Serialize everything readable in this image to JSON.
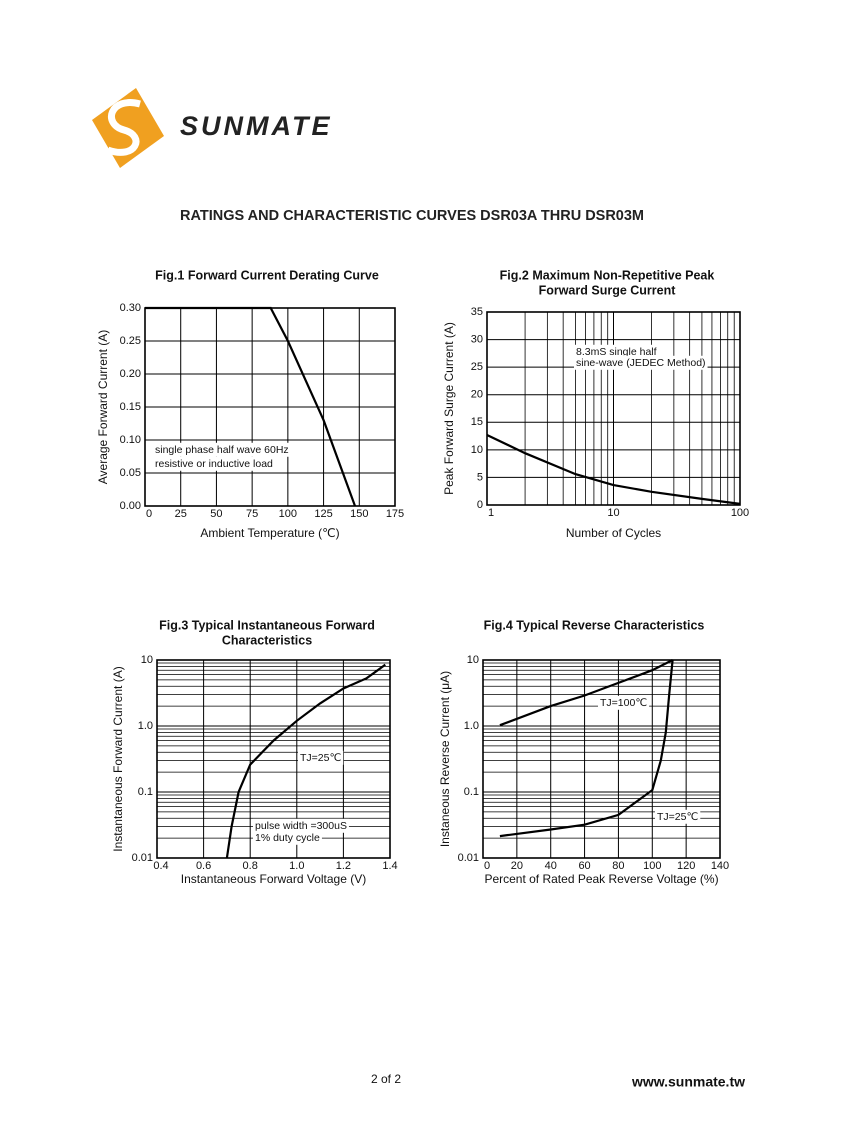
{
  "logo": "SUNMATE",
  "title": "RATINGS AND CHARACTERISTIC CURVES DSR03A THRU DSR03M",
  "page": "2 of 2",
  "website": "www.sunmate.tw",
  "chart_data": [
    {
      "type": "line",
      "title": [
        "Fig.1 Forward Current Derating Curve"
      ],
      "x_label": "Ambient Temperature (℃)",
      "y_label": "Average Forward Current (A)",
      "x": [
        0,
        88,
        100,
        125,
        147
      ],
      "values": [
        0.3,
        0.3,
        0.25,
        0.13,
        0.0
      ],
      "color": "#000000",
      "xlim": [
        0,
        175
      ],
      "xticks": [
        0,
        25,
        50,
        75,
        100,
        125,
        150,
        175
      ],
      "ylim": [
        0,
        0.3
      ],
      "yticks": [
        {
          "value": 0,
          "label": "0.00"
        },
        {
          "value": 0.05,
          "label": "0.05"
        },
        {
          "value": 0.1,
          "label": "0.10"
        },
        {
          "value": 0.15,
          "label": "0.15"
        },
        {
          "value": 0.2,
          "label": "0.20"
        },
        {
          "value": 0.25,
          "label": "0.25"
        },
        {
          "value": 0.3,
          "label": "0.30"
        }
      ],
      "grid": true,
      "annotations": [
        "single phase half wave 60Hz",
        "resistive or inductive load"
      ]
    },
    {
      "type": "line",
      "title": [
        "Fig.2 Maximum Non-Repetitive Peak",
        "Forward Surge Current"
      ],
      "x_label": "Number of Cycles",
      "y_label": "Peak Forward Surge Current (A)",
      "x": [
        1,
        2,
        5,
        10,
        20,
        50,
        100
      ],
      "values": [
        12.7,
        9.4,
        5.6,
        3.6,
        2.4,
        1.1,
        0.2
      ],
      "color": "#000000",
      "x_log": true,
      "xlim": [
        1,
        100
      ],
      "xticks": [
        1,
        10,
        100
      ],
      "ylim": [
        0,
        35
      ],
      "yticks": [
        0,
        5,
        10,
        15,
        20,
        25,
        30,
        35
      ],
      "grid": true,
      "annotations": [
        "8.3mS single half",
        "sine-wave (JEDEC Method)"
      ]
    },
    {
      "type": "line",
      "title": [
        "Fig.3 Typical Instantaneous Forward",
        "Characteristics"
      ],
      "x_label": "Instantaneous Forward Voltage (V)",
      "y_label": "Instantaneous Forward Current (A)",
      "series": [
        {
          "name": "TJ=25℃",
          "color": "#000000",
          "x": [
            0.7,
            0.72,
            0.75,
            0.8,
            0.9,
            1.0,
            1.1,
            1.2,
            1.3,
            1.38
          ],
          "values": [
            0.01,
            0.03,
            0.1,
            0.26,
            0.6,
            1.2,
            2.2,
            3.7,
            5.3,
            8.5
          ]
        }
      ],
      "y_log": true,
      "xlim": [
        0.4,
        1.4
      ],
      "xticks": [
        0.4,
        0.6,
        0.8,
        {
          "value": 1,
          "label": "1.0"
        },
        1.2,
        1.4
      ],
      "ylim": [
        0.01,
        10
      ],
      "yticks": [
        0.01,
        0.1,
        {
          "value": 1,
          "label": "1.0"
        },
        10
      ],
      "grid": true,
      "annotations": [
        "pulse width =300uS",
        "1% duty cycle"
      ]
    },
    {
      "type": "line",
      "title": [
        "Fig.4 Typical Reverse Characteristics"
      ],
      "x_label": "Percent of Rated Peak Reverse Voltage (%)",
      "y_label": "Instaneous Reverse Current (μA)",
      "series": [
        {
          "name": "TJ=100℃",
          "color": "#000000",
          "x": [
            10,
            40,
            60,
            80,
            100,
            112
          ],
          "values": [
            1.03,
            2.0,
            2.9,
            4.5,
            7,
            10
          ]
        },
        {
          "name": "TJ=25℃",
          "color": "#000000",
          "x": [
            10,
            40,
            60,
            80,
            100,
            105,
            108,
            110,
            112
          ],
          "values": [
            0.0215,
            0.027,
            0.032,
            0.045,
            0.107,
            0.3,
            0.8,
            3,
            10
          ]
        }
      ],
      "y_log": true,
      "xlim": [
        0,
        140
      ],
      "xticks": [
        0,
        20,
        40,
        60,
        80,
        100,
        120,
        140
      ],
      "ylim": [
        0.01,
        10
      ],
      "yticks": [
        0.01,
        0.1,
        {
          "value": 1,
          "label": "1.0"
        },
        10
      ],
      "grid": true,
      "annotations": []
    }
  ]
}
